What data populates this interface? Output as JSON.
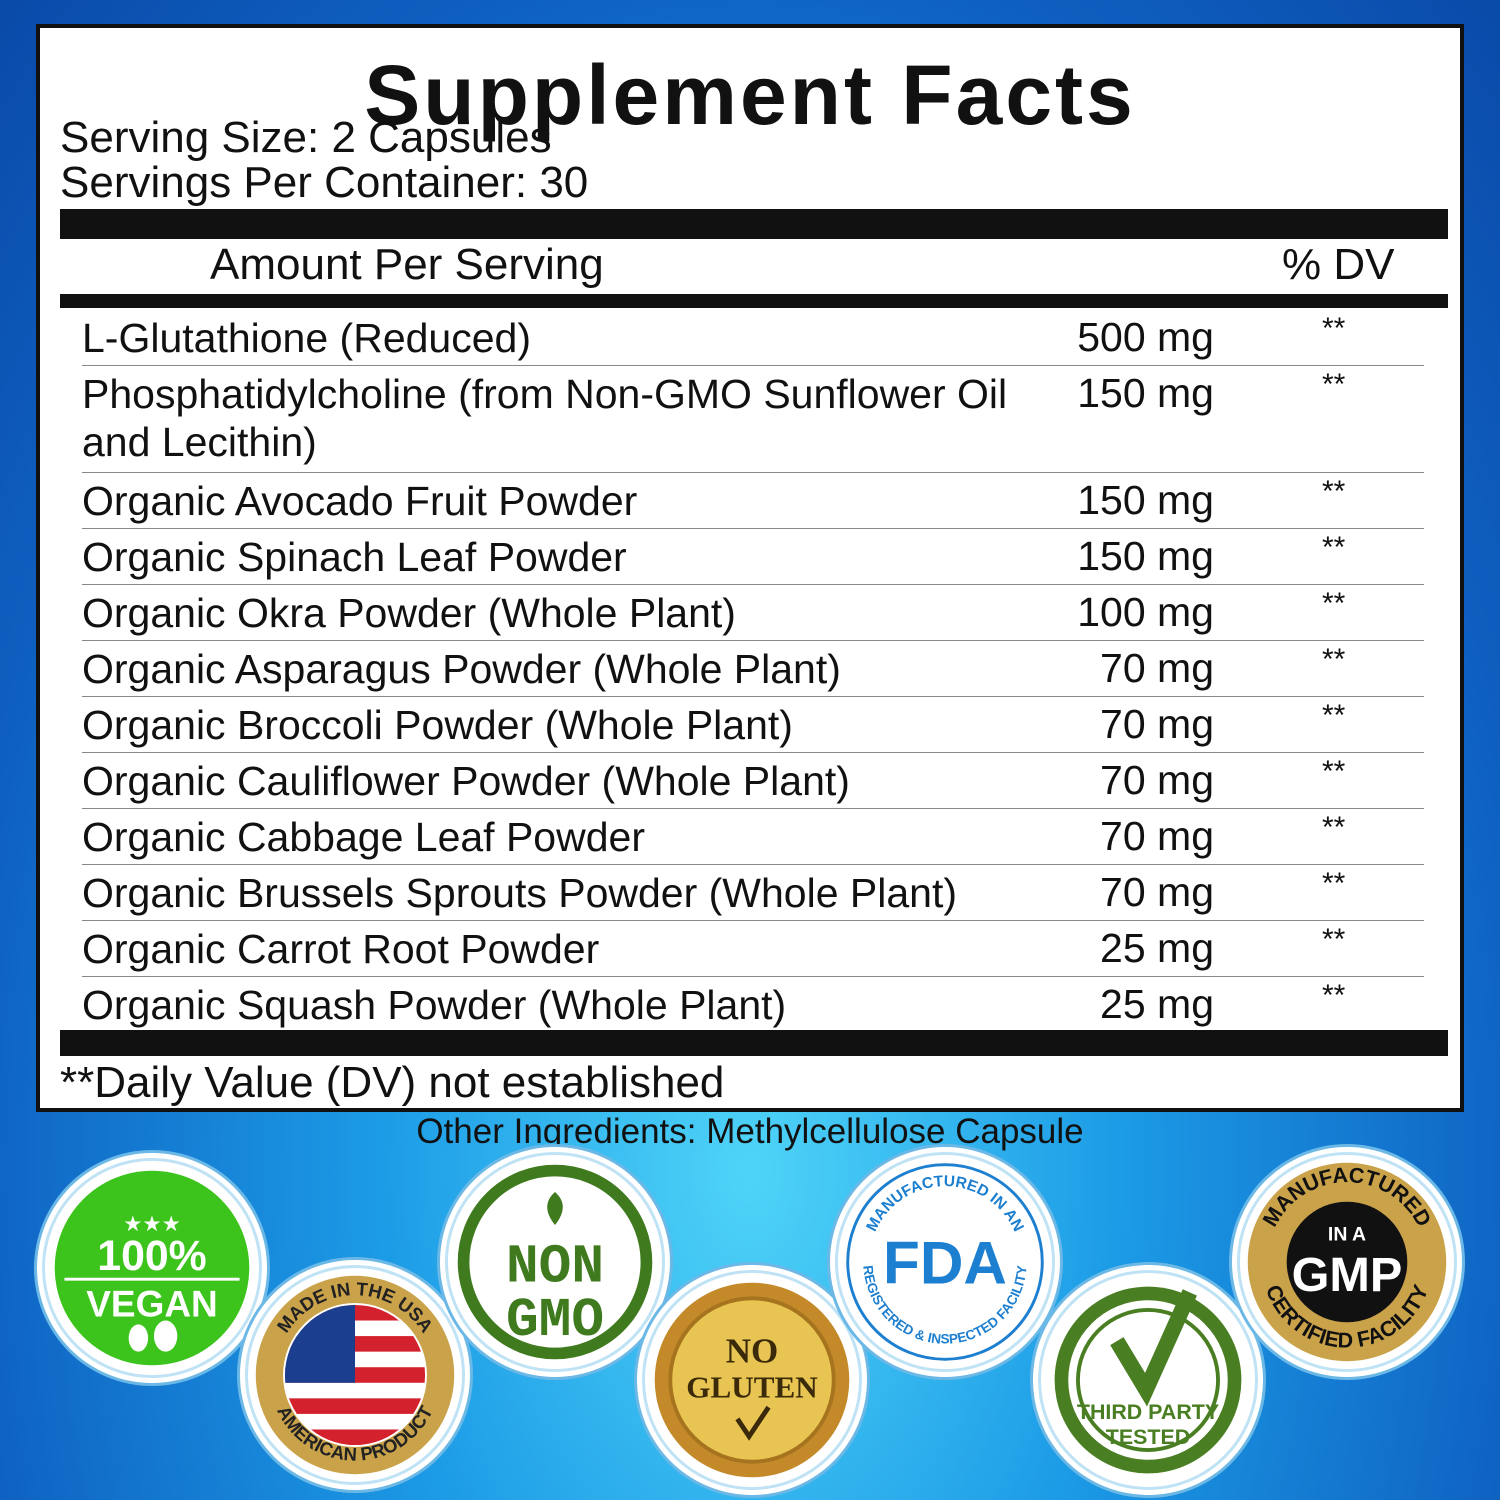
{
  "label": {
    "title": "Supplement Facts",
    "serving_size": "Serving Size: 2 Capsules",
    "servings_per_container": "Servings Per Container: 30",
    "amount_header": "Amount Per Serving",
    "dv_header": "% DV",
    "ingredients": [
      {
        "name": "L-Glutathione (Reduced)",
        "amount": "500 mg",
        "dv": "**"
      },
      {
        "name": "Phosphatidylcholine (from Non-GMO Sunflower Oil and Lecithin)",
        "amount": "150 mg",
        "dv": "**"
      },
      {
        "name": "Organic Avocado Fruit Powder",
        "amount": "150 mg",
        "dv": "**"
      },
      {
        "name": "Organic Spinach Leaf Powder",
        "amount": "150 mg",
        "dv": "**"
      },
      {
        "name": "Organic Okra Powder (Whole Plant)",
        "amount": "100 mg",
        "dv": "**"
      },
      {
        "name": "Organic Asparagus Powder (Whole Plant)",
        "amount": "70 mg",
        "dv": "**"
      },
      {
        "name": "Organic Broccoli Powder (Whole Plant)",
        "amount": "70 mg",
        "dv": "**"
      },
      {
        "name": "Organic Cauliflower Powder (Whole Plant)",
        "amount": "70 mg",
        "dv": "**"
      },
      {
        "name": "Organic Cabbage Leaf Powder",
        "amount": "70 mg",
        "dv": "**"
      },
      {
        "name": "Organic Brussels Sprouts Powder (Whole Plant)",
        "amount": "70 mg",
        "dv": "**"
      },
      {
        "name": "Organic Carrot Root Powder",
        "amount": "25 mg",
        "dv": "**"
      },
      {
        "name": "Organic Squash Powder (Whole Plant)",
        "amount": "25 mg",
        "dv": "**"
      }
    ],
    "footnote": "**Daily Value (DV) not established"
  },
  "other_ingredients": "Other Ingredients: Methylcellulose Capsule",
  "badges": [
    {
      "id": "vegan",
      "line1": "100%",
      "line2": "VEGAN",
      "color": "#3cc41c"
    },
    {
      "id": "usa",
      "top": "MADE IN THE USA",
      "bottom": "AMERICAN PRODUCT",
      "color": "#c9a24a"
    },
    {
      "id": "nongmo",
      "line1": "NON",
      "line2": "GMO",
      "color": "#3f7a1e"
    },
    {
      "id": "gluten",
      "line1": "NO",
      "line2": "GLUTEN",
      "color": "#d4a531"
    },
    {
      "id": "fda",
      "top": "MANUFACTURED IN AN",
      "main": "FDA",
      "bottom": "REGISTERED & INSPECTED FACILITY",
      "color": "#1d7fd0"
    },
    {
      "id": "thirdparty",
      "line1": "THIRD PARTY",
      "line2": "TESTED",
      "color": "#4a7e22"
    },
    {
      "id": "gmp",
      "top": "MANUFACTURED",
      "mid": "IN A",
      "main": "GMP",
      "bottom": "CERTIFIED FACILITY",
      "color": "#c9a24a"
    }
  ]
}
